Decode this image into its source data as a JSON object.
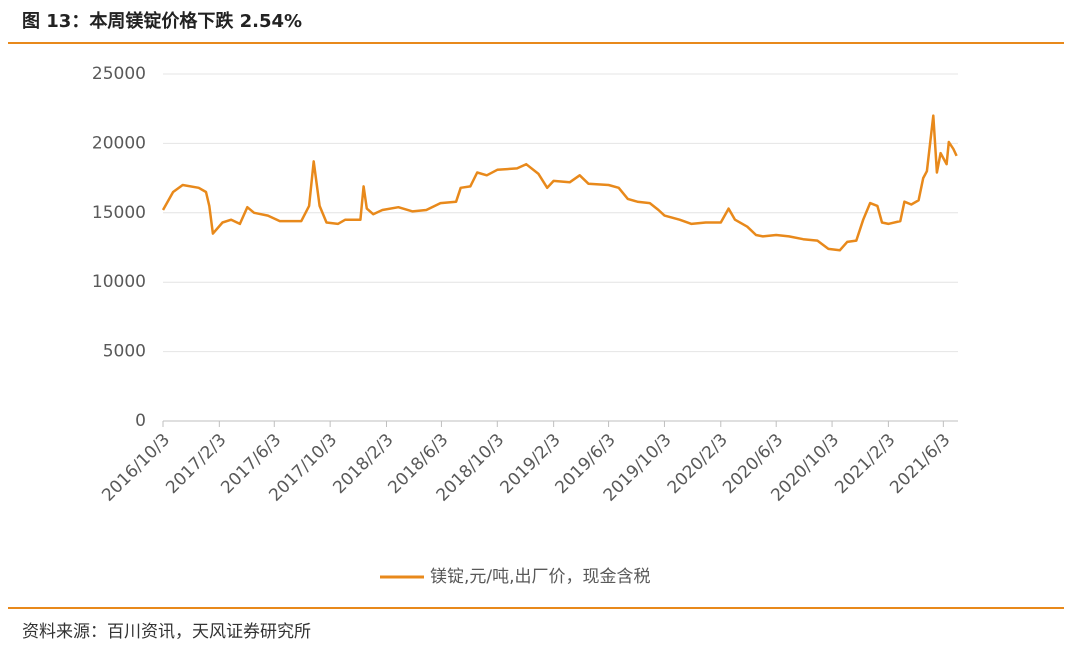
{
  "header": {
    "title": "图 13：本周镁锭价格下跌 2.54%"
  },
  "chart_data": {
    "type": "line",
    "x": [
      "2016/10/3",
      "2016/10/25",
      "2016/11/15",
      "2016/12/20",
      "2017/1/5",
      "2017/1/12",
      "2017/1/20",
      "2017/2/10",
      "2017/3/1",
      "2017/3/20",
      "2017/4/5",
      "2017/4/20",
      "2017/5/20",
      "2017/6/15",
      "2017/8/1",
      "2017/8/18",
      "2017/8/28",
      "2017/9/10",
      "2017/9/25",
      "2017/10/20",
      "2017/11/5",
      "2017/12/8",
      "2017/12/15",
      "2017/12/22",
      "2018/1/5",
      "2018/1/25",
      "2018/3/1",
      "2018/4/1",
      "2018/5/1",
      "2018/6/1",
      "2018/7/5",
      "2018/7/15",
      "2018/8/5",
      "2018/8/20",
      "2018/9/10",
      "2018/10/3",
      "2018/11/15",
      "2018/12/5",
      "2019/1/1",
      "2019/1/20",
      "2019/2/3",
      "2019/3/10",
      "2019/4/1",
      "2019/4/20",
      "2019/6/3",
      "2019/6/25",
      "2019/7/15",
      "2019/8/5",
      "2019/9/1",
      "2019/9/20",
      "2019/10/3",
      "2019/11/5",
      "2019/12/1",
      "2020/1/1",
      "2020/2/3",
      "2020/2/20",
      "2020/3/5",
      "2020/4/1",
      "2020/4/20",
      "2020/5/5",
      "2020/6/3",
      "2020/7/1",
      "2020/8/1",
      "2020/9/1",
      "2020/9/25",
      "2020/10/20",
      "2020/11/5",
      "2020/11/25",
      "2020/12/10",
      "2020/12/25",
      "2021/1/10",
      "2021/1/20",
      "2021/2/3",
      "2021/3/1",
      "2021/3/10",
      "2021/3/25",
      "2021/4/10",
      "2021/4/20",
      "2021/4/28",
      "2021/5/12",
      "2021/5/20",
      "2021/5/28",
      "2021/6/10",
      "2021/6/15",
      "2021/6/25",
      "2021/7/2"
    ],
    "series": [
      {
        "name": "镁锭,元/吨,出厂价，现金含税",
        "color": "#e8891b",
        "values": [
          15200,
          16500,
          17000,
          16800,
          16500,
          15500,
          13500,
          14300,
          14500,
          14200,
          15400,
          15000,
          14800,
          14400,
          14400,
          15500,
          18700,
          15500,
          14300,
          14200,
          14500,
          14500,
          16900,
          15300,
          14900,
          15200,
          15400,
          15100,
          15200,
          15700,
          15800,
          16800,
          16900,
          17900,
          17700,
          18100,
          18200,
          18500,
          17800,
          16800,
          17300,
          17200,
          17700,
          17100,
          17000,
          16800,
          16000,
          15800,
          15700,
          15200,
          14800,
          14500,
          14200,
          14300,
          14300,
          15300,
          14500,
          14000,
          13400,
          13300,
          13400,
          13300,
          13100,
          13000,
          12400,
          12300,
          12900,
          13000,
          14500,
          15700,
          15500,
          14300,
          14200,
          14400,
          15800,
          15600,
          15900,
          17500,
          18000,
          22000,
          17900,
          19300,
          18500,
          20100,
          19600,
          19100
        ]
      }
    ],
    "xlim": [
      "2016/10/3",
      "2021/7/5"
    ],
    "xticks": [
      "2016/10/3",
      "2017/2/3",
      "2017/6/3",
      "2017/10/3",
      "2018/2/3",
      "2018/6/3",
      "2018/10/3",
      "2019/2/3",
      "2019/6/3",
      "2019/10/3",
      "2020/2/3",
      "2020/6/3",
      "2020/10/3",
      "2021/2/3",
      "2021/6/3"
    ],
    "ylim": [
      0,
      25000
    ],
    "yticks": [
      0,
      5000,
      10000,
      15000,
      20000,
      25000
    ],
    "grid": true,
    "legend": "bottom"
  },
  "footer": {
    "source": "资料来源：百川资讯，天风证券研究所"
  }
}
